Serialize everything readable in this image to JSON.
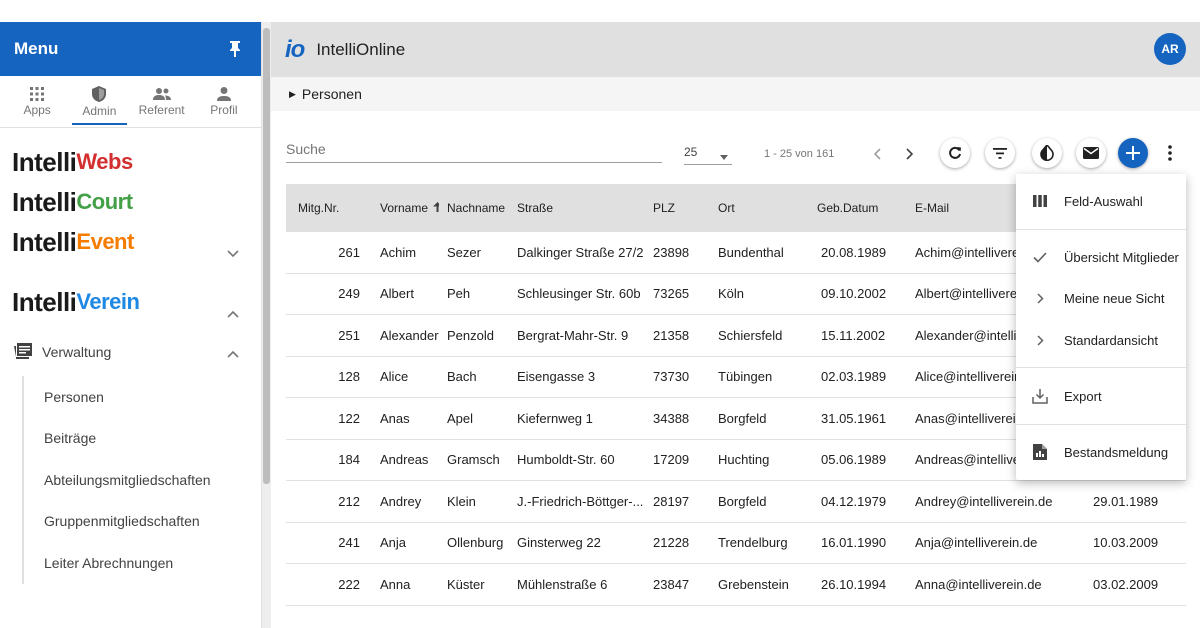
{
  "sidebar": {
    "title": "Menu",
    "tabs": [
      {
        "label": "Apps"
      },
      {
        "label": "Admin"
      },
      {
        "label": "Referent"
      },
      {
        "label": "Profil"
      }
    ],
    "brands": {
      "webs": {
        "prefix": "Intelli",
        "suffix": "Webs"
      },
      "court": {
        "prefix": "Intelli",
        "suffix": "Court"
      },
      "event": {
        "prefix": "Intelli",
        "suffix": "Event"
      },
      "verein": {
        "prefix": "Intelli",
        "suffix": "Verein"
      }
    },
    "section": "Verwaltung",
    "items": [
      {
        "label": "Personen"
      },
      {
        "label": "Beiträge"
      },
      {
        "label": "Abteilungsmitgliedschaften"
      },
      {
        "label": "Gruppenmitgliedschaften"
      },
      {
        "label": "Leiter Abrechnungen"
      }
    ]
  },
  "header": {
    "logo": "io",
    "title": "IntelliOnline",
    "avatar": "AR"
  },
  "breadcrumb": "Personen",
  "toolbar": {
    "search_placeholder": "Suche",
    "page_size": "25",
    "page_range": "1 - 25 von 161"
  },
  "table": {
    "headers": [
      "Mitg.Nr.",
      "Vorname",
      "Nachname",
      "Straße",
      "PLZ",
      "Ort",
      "Geb.Datum",
      "E-Mail"
    ],
    "rows": [
      {
        "nr": "261",
        "vorname": "Achim",
        "nachname": "Sezer",
        "strasse": "Dalkinger Straße 27/2",
        "plz": "23898",
        "ort": "Bundenthal",
        "geb": "20.08.1989",
        "mail": "Achim@intelliverein.de",
        "last": ""
      },
      {
        "nr": "249",
        "vorname": "Albert",
        "nachname": "Peh",
        "strasse": "Schleusinger Str. 60b",
        "plz": "73265",
        "ort": "Köln",
        "geb": "09.10.2002",
        "mail": "Albert@intelliverein.de",
        "last": ""
      },
      {
        "nr": "251",
        "vorname": "Alexander",
        "nachname": "Penzold",
        "strasse": "Bergrat-Mahr-Str. 9",
        "plz": "21358",
        "ort": "Schiersfeld",
        "geb": "15.11.2002",
        "mail": "Alexander@intelliverein.de",
        "last": ""
      },
      {
        "nr": "128",
        "vorname": "Alice",
        "nachname": "Bach",
        "strasse": "Eisengasse 3",
        "plz": "73730",
        "ort": "Tübingen",
        "geb": "02.03.1989",
        "mail": "Alice@intelliverein.de",
        "last": ""
      },
      {
        "nr": "122",
        "vorname": "Anas",
        "nachname": "Apel",
        "strasse": "Kiefernweg 1",
        "plz": "34388",
        "ort": "Borgfeld",
        "geb": "31.05.1961",
        "mail": "Anas@intelliverein.de",
        "last": ""
      },
      {
        "nr": "184",
        "vorname": "Andreas",
        "nachname": "Gramsch",
        "strasse": "Humboldt-Str. 60",
        "plz": "17209",
        "ort": "Huchting",
        "geb": "05.06.1989",
        "mail": "Andreas@intelliverein.de",
        "last": ""
      },
      {
        "nr": "212",
        "vorname": "Andrey",
        "nachname": "Klein",
        "strasse": "J.-Friedrich-Böttger-...",
        "plz": "28197",
        "ort": "Borgfeld",
        "geb": "04.12.1979",
        "mail": "Andrey@intelliverein.de",
        "last": "29.01.1989"
      },
      {
        "nr": "241",
        "vorname": "Anja",
        "nachname": "Ollenburg",
        "strasse": "Ginsterweg 22",
        "plz": "21228",
        "ort": "Trendelburg",
        "geb": "16.01.1990",
        "mail": "Anja@intelliverein.de",
        "last": "10.03.2009"
      },
      {
        "nr": "222",
        "vorname": "Anna",
        "nachname": "Küster",
        "strasse": "Mühlenstraße 6",
        "plz": "23847",
        "ort": "Grebenstein",
        "geb": "26.10.1994",
        "mail": "Anna@intelliverein.de",
        "last": "03.02.2009"
      }
    ]
  },
  "menu": {
    "feld_auswahl": "Feld-Auswahl",
    "uebersicht": "Übersicht Mitglieder",
    "meine_sicht": "Meine neue Sicht",
    "standard": "Standardansicht",
    "export": "Export",
    "bestand": "Bestandsmeldung"
  },
  "colors": {
    "primary": "#1565c0",
    "header_bg": "#e0e0e0"
  }
}
